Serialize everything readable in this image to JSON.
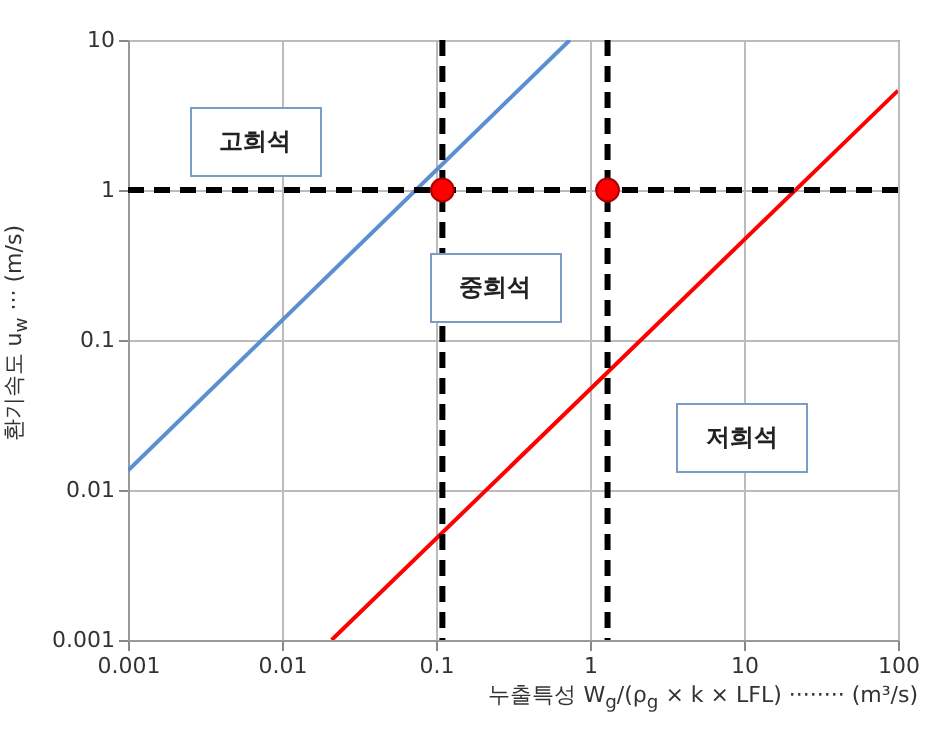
{
  "chart_data": {
    "type": "line",
    "xlabel": "누출특성 W$_{g}$/(ρ$_{g}$ × k × LFL) ········ (m³/s)",
    "ylabel": "환기속도 u$_{w}$ ··· (m/s)",
    "log": "xy",
    "xlim": [
      0.001,
      100
    ],
    "ylim": [
      0.001,
      10
    ],
    "xticks": [
      0.001,
      0.01,
      0.1,
      1,
      10,
      100
    ],
    "yticks": [
      0.001,
      0.01,
      0.1,
      1,
      10
    ],
    "grid": true,
    "series": [
      {
        "color": "#5b8fd0",
        "x": [
          0.001,
          0.74
        ],
        "values": [
          0.0135,
          10
        ]
      },
      {
        "color": "#ff0000",
        "x": [
          0.021,
          100
        ],
        "values": [
          0.001,
          4.6
        ]
      },
      {
        "type": "scatter",
        "marker": "circle",
        "color": "#ff0000",
        "x": [
          0.11,
          1.3
        ],
        "values": [
          1,
          1
        ]
      }
    ],
    "ref_lines": [
      {
        "axis": "y",
        "value": 1,
        "color": "#000000",
        "line_style": "dashed"
      },
      {
        "axis": "x",
        "value": 0.11,
        "color": "#000000",
        "line_style": "dashed"
      },
      {
        "axis": "x",
        "value": 1.3,
        "color": "#000000",
        "line_style": "dashed"
      }
    ],
    "annotations": [
      "고희석",
      "중희석",
      "저희석"
    ]
  }
}
